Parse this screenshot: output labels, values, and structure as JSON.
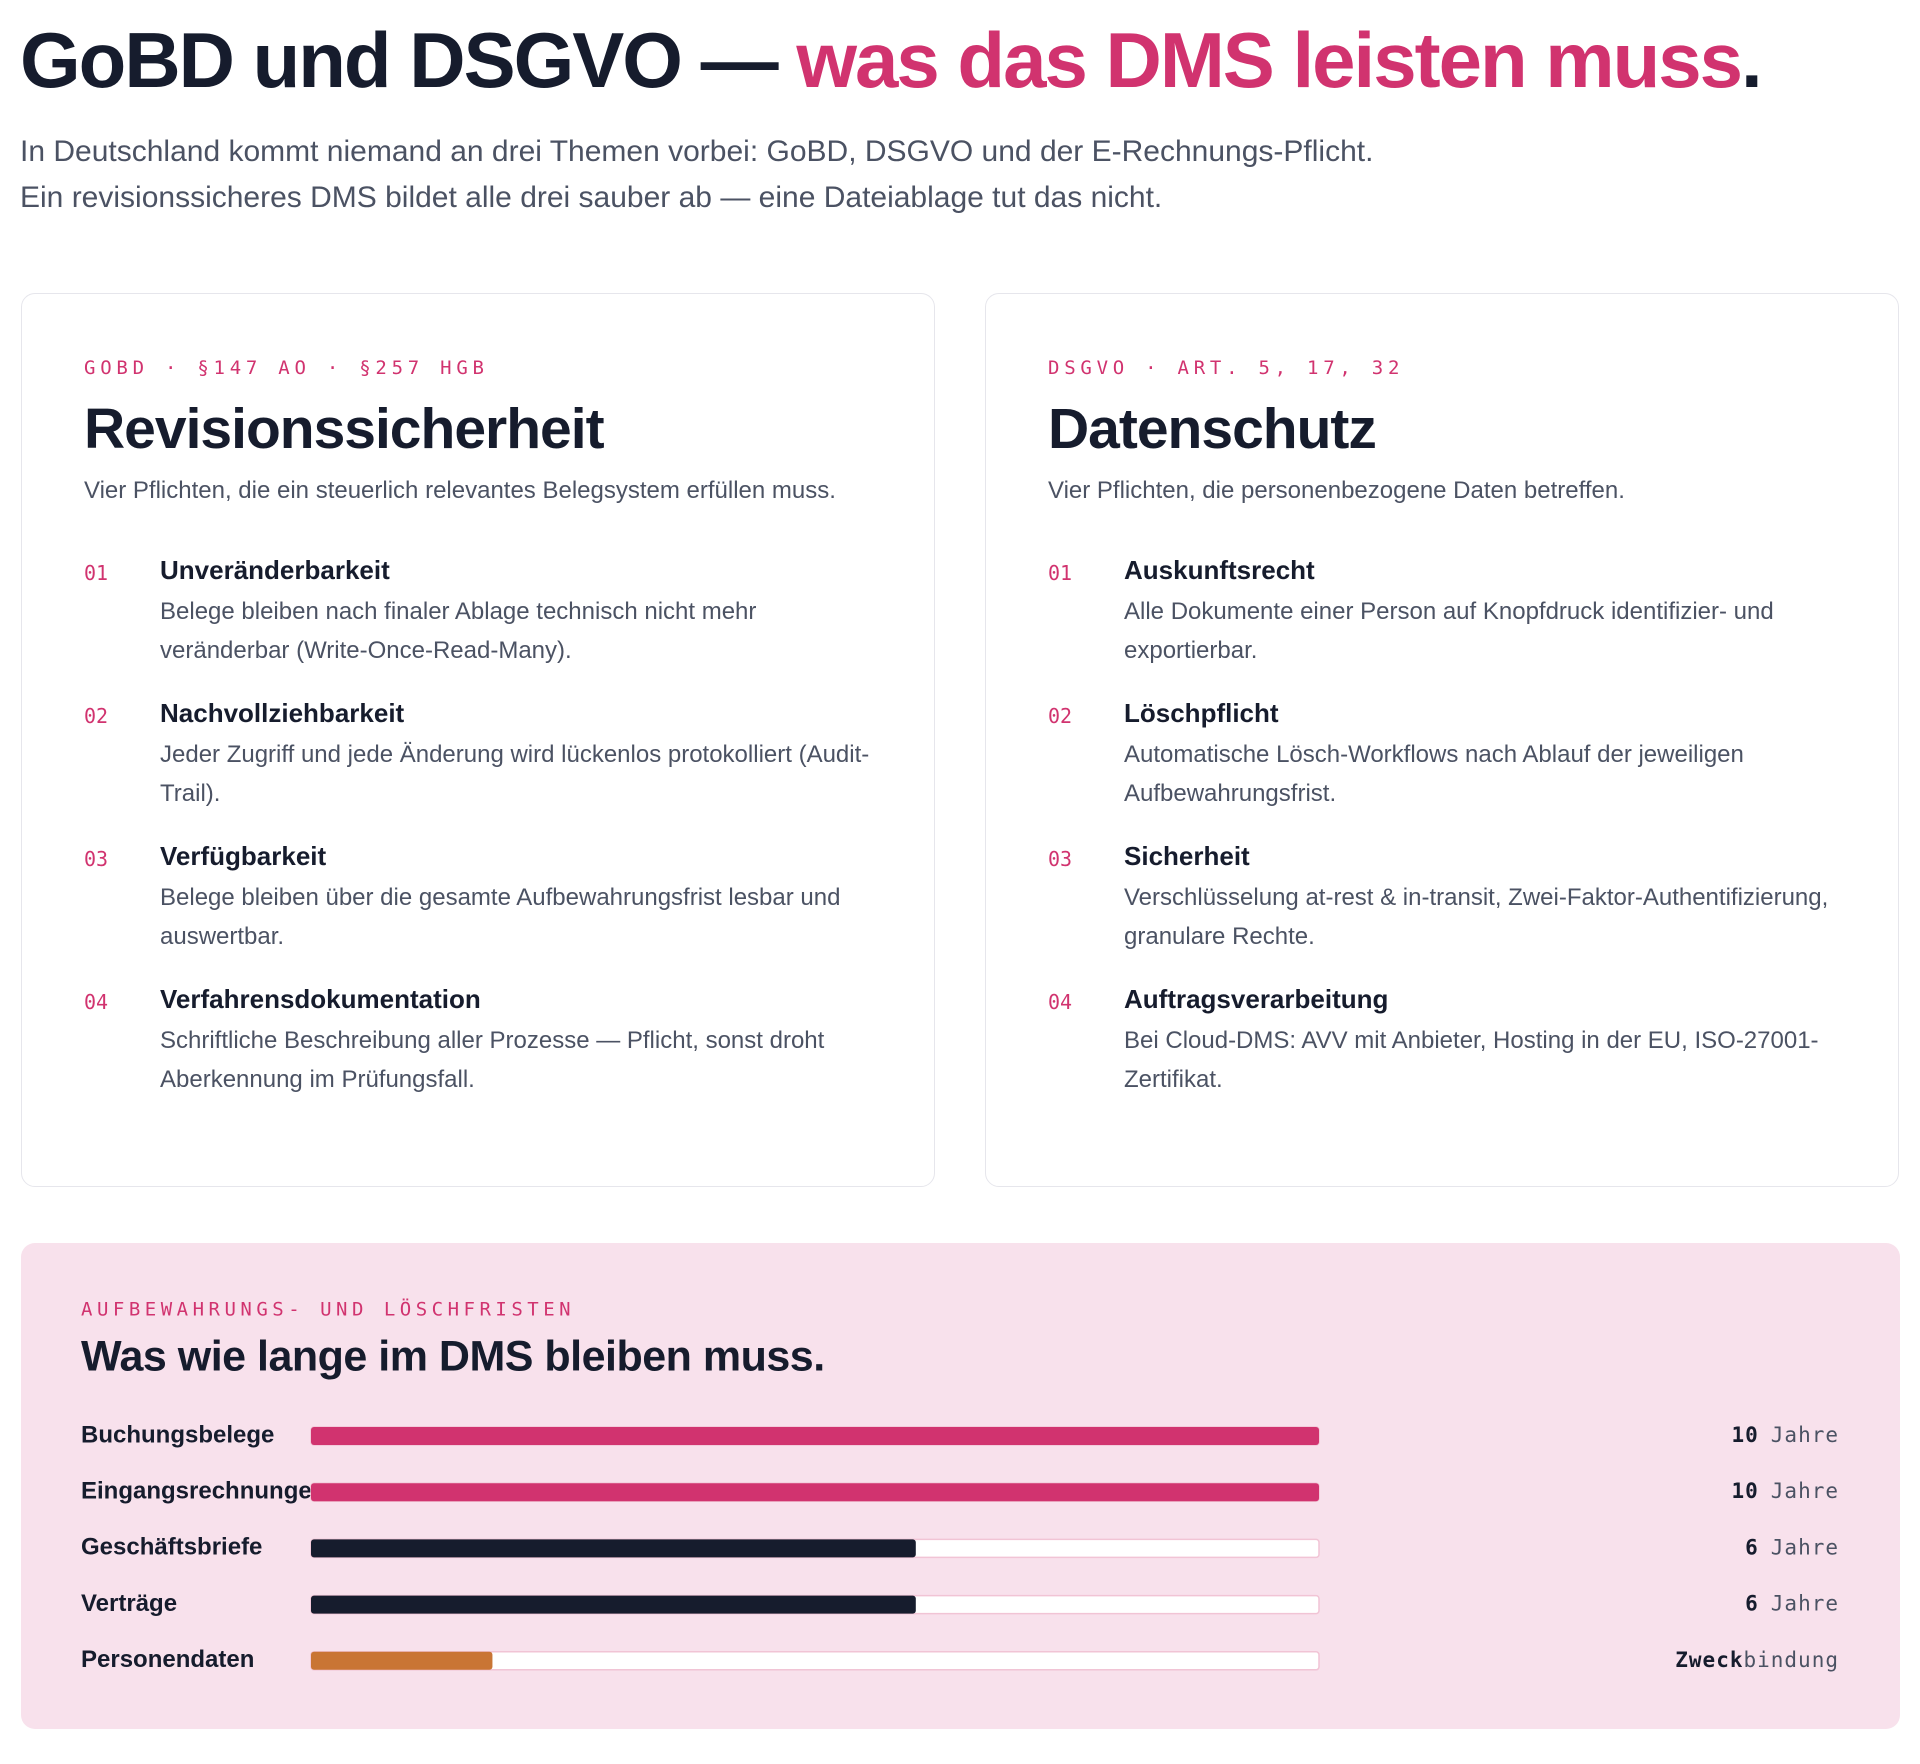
{
  "header": {
    "title_main": "GoBD und DSGVO —",
    "title_accent": "was das DMS leisten muss",
    "title_end": ".",
    "intro": [
      "In Deutschland kommt niemand an drei Themen vorbei: GoBD, DSGVO und der E-Rechnungs-Pflicht.",
      "Ein revisionssicheres DMS bildet alle drei sauber ab — eine Dateiablage tut das nicht."
    ]
  },
  "cards": [
    {
      "eyebrow": "GOBD · §147 AO · §257 HGB",
      "title": "Revisionssicherheit",
      "lead": "Vier Pflichten, die ein steuerlich relevantes Belegsystem erfüllen muss.",
      "items": [
        {
          "num": "01",
          "title": "Unveränderbarkeit",
          "text": "Belege bleiben nach finaler Ablage technisch nicht mehr veränderbar (Write-Once-Read-Many)."
        },
        {
          "num": "02",
          "title": "Nachvollziehbarkeit",
          "text": "Jeder Zugriff und jede Änderung wird lückenlos protokolliert (Audit-Trail)."
        },
        {
          "num": "03",
          "title": "Verfügbarkeit",
          "text": "Belege bleiben über die gesamte Aufbewahrungsfrist lesbar und auswertbar."
        },
        {
          "num": "04",
          "title": "Verfahrensdokumentation",
          "text": "Schriftliche Beschreibung aller Prozesse — Pflicht, sonst droht Aberkennung im Prüfungsfall."
        }
      ]
    },
    {
      "eyebrow": "DSGVO · ART. 5, 17, 32",
      "title": "Datenschutz",
      "lead": "Vier Pflichten, die personenbezogene Daten betreffen.",
      "items": [
        {
          "num": "01",
          "title": "Auskunftsrecht",
          "text": "Alle Dokumente einer Person auf Knopfdruck identifizier- und exportierbar."
        },
        {
          "num": "02",
          "title": "Löschpflicht",
          "text": "Automatische Lösch-Workflows nach Ablauf der jeweiligen Aufbewahrungsfrist."
        },
        {
          "num": "03",
          "title": "Sicherheit",
          "text": "Verschlüsselung at-rest & in-transit, Zwei-Faktor-Authentifizierung, granulare Rechte."
        },
        {
          "num": "04",
          "title": "Auftragsverarbeitung",
          "text": "Bei Cloud-DMS: AVV mit Anbieter, Hosting in der EU, ISO-27001-Zertifikat."
        }
      ]
    }
  ],
  "chart_data": {
    "type": "hbar",
    "eyebrow": "AUFBEWAHRUNGS- UND LÖSCHFRISTEN",
    "title": "Was wie lange im DMS bleiben muss.",
    "categories": [
      "Buchungsbelege",
      "Eingangsrechnungen",
      "Geschäftsbriefe",
      "Verträge",
      "Personendaten"
    ],
    "values": [
      10,
      10,
      6,
      6,
      1.8
    ],
    "value_labels": [
      [
        "10",
        "Jahre"
      ],
      [
        "10",
        "Jahre"
      ],
      [
        "6",
        "Jahre"
      ],
      [
        "6",
        "Jahre"
      ],
      [
        "Zweck",
        "bindung"
      ]
    ],
    "colors": [
      "#d1336f",
      "#d1336f",
      "#161c2d",
      "#161c2d",
      "#c97534"
    ],
    "xlim": [
      0,
      10
    ]
  }
}
